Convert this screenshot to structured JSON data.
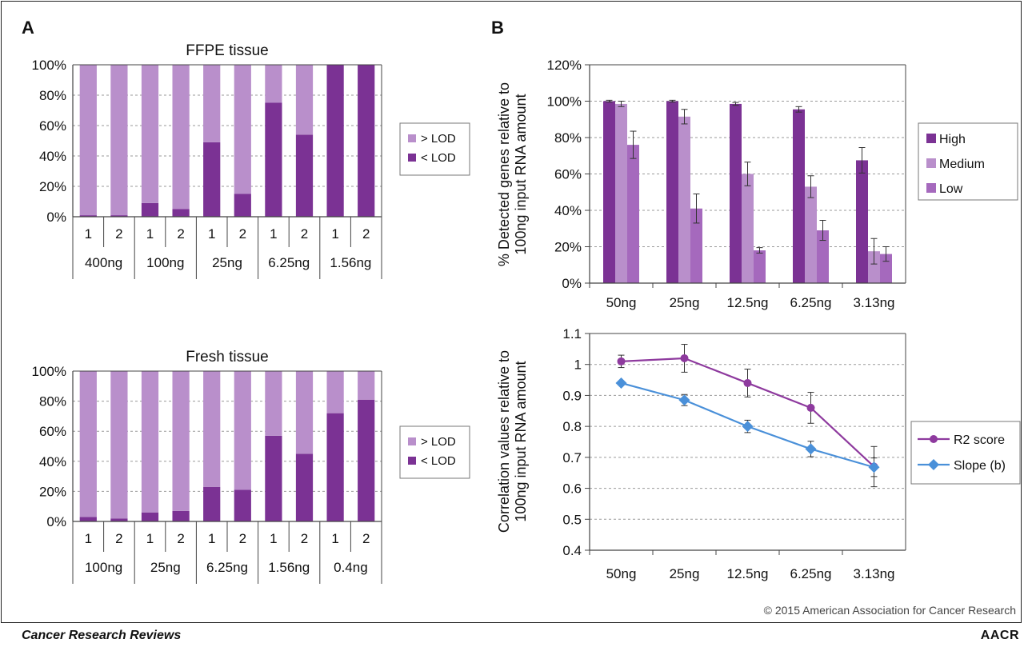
{
  "panel_labels": {
    "a": "A",
    "b": "B"
  },
  "footer": {
    "journal": "Cancer Research Reviews",
    "logo": "AACR",
    "copyright": "© 2015 American Association for Cancer Research"
  },
  "colors": {
    "dark_purple": "#7b3294",
    "light_purple": "#b98fcb",
    "mid_purple": "#a569bd",
    "blue": "#4a90d9",
    "line_purple": "#8e3a9e"
  },
  "chart_data": [
    {
      "id": "ffpe",
      "type": "bar",
      "stacked": true,
      "title": "FFPE tissue",
      "categories": [
        "1",
        "2",
        "1",
        "2",
        "1",
        "2",
        "1",
        "2",
        "1",
        "2"
      ],
      "groups": [
        "400ng",
        "100ng",
        "25ng",
        "6.25ng",
        "1.56ng"
      ],
      "series": [
        {
          "name": "< LOD",
          "values": [
            1,
            1,
            9,
            5,
            49,
            15,
            75,
            54,
            100,
            100
          ]
        },
        {
          "name": "> LOD",
          "values": [
            99,
            99,
            91,
            95,
            51,
            85,
            25,
            46,
            0,
            0
          ]
        }
      ],
      "legend": [
        "> LOD",
        "< LOD"
      ],
      "yticks": [
        "0%",
        "20%",
        "40%",
        "60%",
        "80%",
        "100%"
      ],
      "ylim": [
        0,
        100
      ],
      "legend_position": "right",
      "grid": true
    },
    {
      "id": "fresh",
      "type": "bar",
      "stacked": true,
      "title": "Fresh tissue",
      "categories": [
        "1",
        "2",
        "1",
        "2",
        "1",
        "2",
        "1",
        "2",
        "1",
        "2"
      ],
      "groups": [
        "100ng",
        "25ng",
        "6.25ng",
        "1.56ng",
        "0.4ng"
      ],
      "series": [
        {
          "name": "< LOD",
          "values": [
            3,
            2,
            6,
            7,
            23,
            21,
            57,
            45,
            72,
            81
          ]
        },
        {
          "name": "> LOD",
          "values": [
            97,
            98,
            94,
            93,
            77,
            79,
            43,
            55,
            28,
            19
          ]
        }
      ],
      "legend": [
        "> LOD",
        "< LOD"
      ],
      "yticks": [
        "0%",
        "20%",
        "40%",
        "60%",
        "80%",
        "100%"
      ],
      "ylim": [
        0,
        100
      ],
      "legend_position": "right",
      "grid": true
    },
    {
      "id": "detected",
      "type": "bar",
      "ylabel": "% Detected genes relative to 100ng input RNA amount",
      "categories": [
        "50ng",
        "25ng",
        "12.5ng",
        "6.25ng",
        "3.13ng"
      ],
      "series": [
        {
          "name": "High",
          "values": [
            100,
            100,
            98.5,
            95.5,
            67.5
          ],
          "errors": [
            0.5,
            0.5,
            0.8,
            1.5,
            7
          ]
        },
        {
          "name": "Medium",
          "values": [
            98.5,
            91.5,
            60,
            53,
            17.5
          ],
          "errors": [
            1.5,
            4,
            6.5,
            6,
            7
          ]
        },
        {
          "name": "Low",
          "values": [
            76,
            41,
            18,
            29,
            16
          ],
          "errors": [
            7.5,
            8,
            1.5,
            5.5,
            4
          ]
        }
      ],
      "yticks": [
        "0%",
        "20%",
        "40%",
        "60%",
        "80%",
        "100%",
        "120%"
      ],
      "ylim": [
        0,
        120
      ],
      "legend_position": "right",
      "grid": true
    },
    {
      "id": "correlation",
      "type": "line",
      "ylabel": "Correlation values relative to 100ng input RNA amount",
      "categories": [
        "50ng",
        "25ng",
        "12.5ng",
        "6.25ng",
        "3.13ng"
      ],
      "series": [
        {
          "name": "R2 score",
          "values": [
            1.01,
            1.02,
            0.94,
            0.86,
            0.67
          ],
          "errors": [
            0.02,
            0.045,
            0.045,
            0.05,
            0.065
          ]
        },
        {
          "name": "Slope (b)",
          "values": [
            0.94,
            0.885,
            0.8,
            0.727,
            0.668
          ],
          "errors": [
            0,
            0.018,
            0.02,
            0.025,
            0.03
          ]
        }
      ],
      "yticks": [
        "0.4",
        "0.5",
        "0.6",
        "0.7",
        "0.8",
        "0.9",
        "1",
        "1.1"
      ],
      "ylim": [
        0.4,
        1.1
      ],
      "legend_position": "right",
      "grid": true
    }
  ]
}
